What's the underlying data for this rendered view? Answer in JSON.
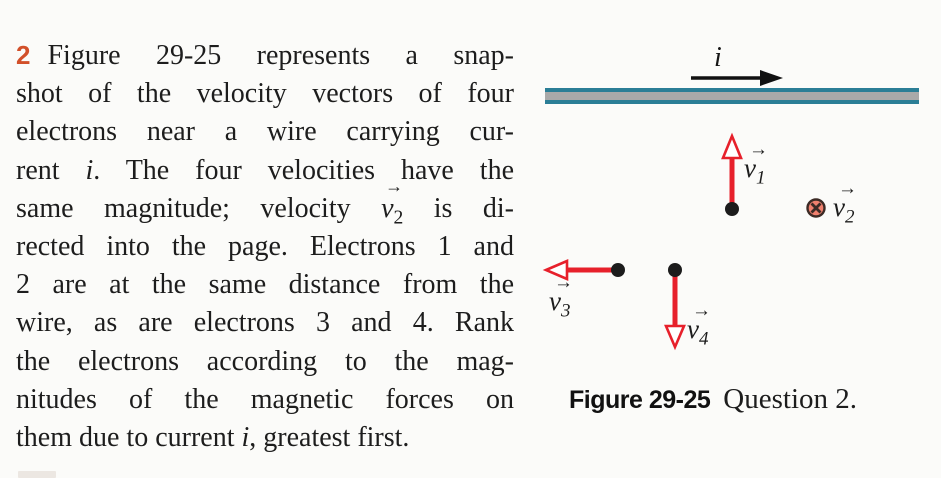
{
  "problem": {
    "number": "2",
    "lines": [
      [
        {
          "k": "num",
          "t": "2"
        },
        {
          "k": "p",
          "t": "Figure 29-25 represents a snap-"
        }
      ],
      [
        {
          "k": "p",
          "t": "shot of the velocity vectors of four"
        }
      ],
      [
        {
          "k": "p",
          "t": "electrons near a wire carrying cur-"
        }
      ],
      [
        {
          "k": "p",
          "t": "rent "
        },
        {
          "k": "i",
          "t": "i"
        },
        {
          "k": "p",
          "t": ". The four velocities have the"
        }
      ],
      [
        {
          "k": "p",
          "t": "same magnitude; velocity "
        },
        {
          "k": "vec",
          "base": "v",
          "sub": "2"
        },
        {
          "k": "p",
          "t": " is di-"
        }
      ],
      [
        {
          "k": "p",
          "t": "rected into the page. Electrons 1 and"
        }
      ],
      [
        {
          "k": "p",
          "t": "2 are at the same distance from the"
        }
      ],
      [
        {
          "k": "p",
          "t": "wire, as are electrons 3 and 4. Rank"
        }
      ],
      [
        {
          "k": "p",
          "t": "the electrons according to the mag-"
        }
      ],
      [
        {
          "k": "p",
          "t": "nitudes of the magnetic forces on"
        }
      ],
      [
        {
          "k": "p",
          "t": "them due to current "
        },
        {
          "k": "i",
          "t": "i"
        },
        {
          "k": "p",
          "t": ", greatest first."
        }
      ]
    ]
  },
  "figure": {
    "current_label": "i",
    "arrow_glyph": "→",
    "vectors": {
      "v1": {
        "base": "v",
        "sub": "1"
      },
      "v2": {
        "base": "v",
        "sub": "2"
      },
      "v3": {
        "base": "v",
        "sub": "3"
      },
      "v4": {
        "base": "v",
        "sub": "4"
      }
    },
    "caption": {
      "bold": "Figure 29-25",
      "rest": "Question 2."
    }
  },
  "colors": {
    "accent_number": "#d2502a",
    "vector_red": "#e7202b",
    "wire_teal": "#2b7e96",
    "wire_gray": "#a9a9a9",
    "electron_dot": "#1c1c1c",
    "into_page_fill": "#f0806e",
    "into_page_ring": "#3c2b26",
    "body_text": "#1d1d1d"
  }
}
